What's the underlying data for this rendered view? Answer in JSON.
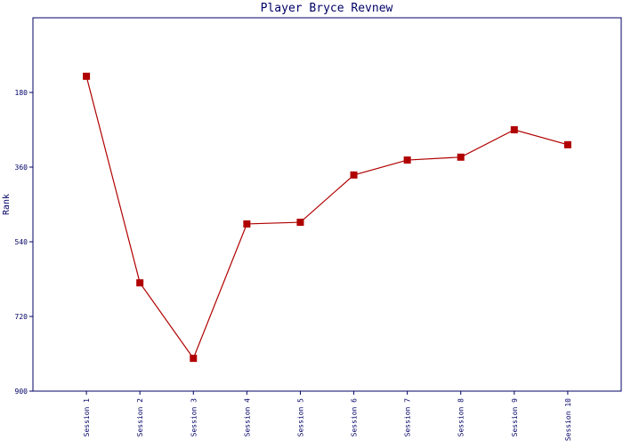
{
  "chart_data": {
    "type": "line",
    "title": "Player Bryce Revnew",
    "y_label": "Rank",
    "categories": [
      "Session 1",
      "Session 2",
      "Session 3",
      "Session 4",
      "Session 5",
      "Session 6",
      "Session 7",
      "Session 8",
      "Session 9",
      "Session 10"
    ],
    "series": [
      {
        "name": "Rank",
        "color": "#b00000",
        "values": [
          141,
          639,
          821,
          497,
          493,
          379,
          343,
          336,
          270,
          306
        ]
      }
    ],
    "ylim": [
      900,
      0
    ],
    "yticks": [
      180,
      360,
      540,
      720,
      900
    ],
    "y_inverted": true
  }
}
